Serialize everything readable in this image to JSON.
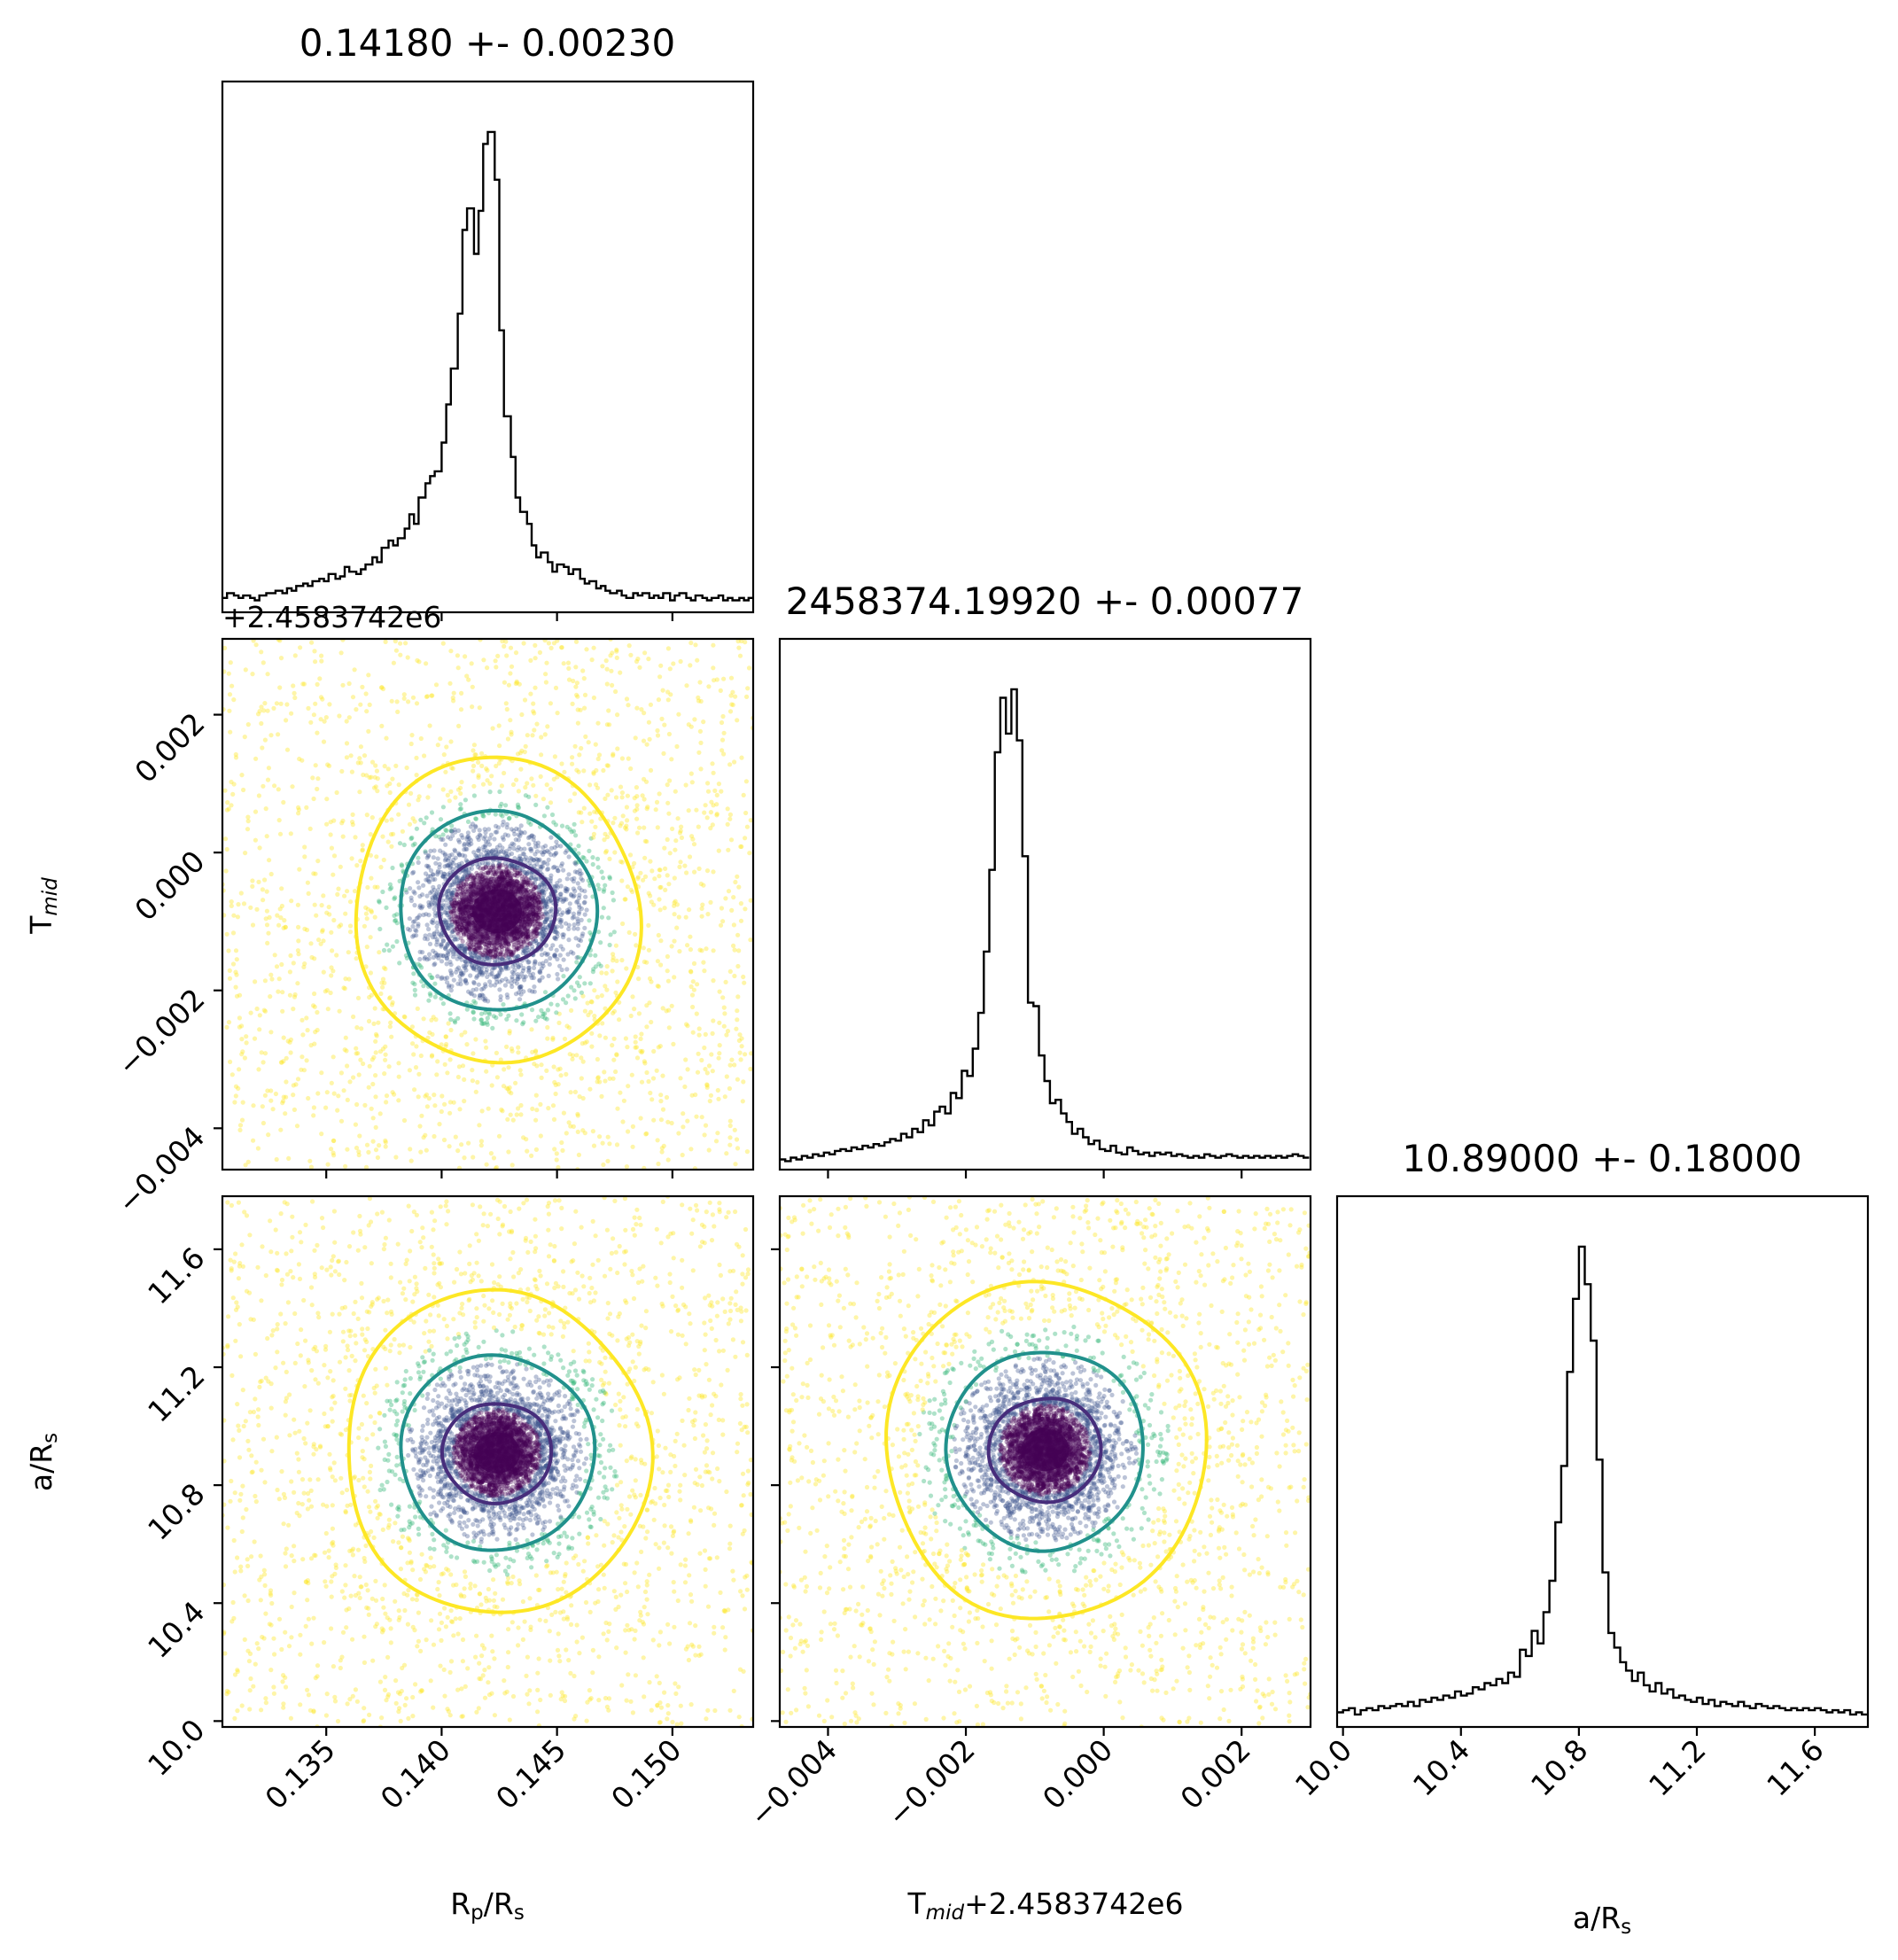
{
  "figure": {
    "type": "corner-plot",
    "colors": {
      "outer_contour": "#fde725",
      "middle_contour": "#21918c",
      "inner_contour": "#472d7b",
      "core": "#440154",
      "histogram": "#000000"
    }
  },
  "chart_data": [
    {
      "type": "histogram",
      "panel": "Rp/Rs marginal",
      "title": "0.14180 +- 0.00230",
      "xlim": [
        0.1305,
        0.1535
      ],
      "x_ticks": [
        "0.135",
        "0.140",
        "0.145",
        "0.150"
      ],
      "x_tick_values": [
        0.135,
        0.14,
        0.145,
        0.15
      ],
      "bins": [
        0.1305,
        0.1307,
        0.131,
        0.1312,
        0.1314,
        0.1317,
        0.1319,
        0.1321,
        0.1324,
        0.1326,
        0.1328,
        0.1331,
        0.1333,
        0.1335,
        0.1337,
        0.134,
        0.1342,
        0.1344,
        0.1347,
        0.1349,
        0.1351,
        0.1354,
        0.1356,
        0.1358,
        0.136,
        0.1363,
        0.1365,
        0.1367,
        0.137,
        0.1372,
        0.1374,
        0.1377,
        0.1379,
        0.1381,
        0.1384,
        0.1386,
        0.1388,
        0.139,
        0.1393,
        0.1395,
        0.1397,
        0.14,
        0.1402,
        0.1404,
        0.1407,
        0.1409,
        0.1411,
        0.1414,
        0.1416,
        0.1418,
        0.142,
        0.1423,
        0.1425,
        0.1427,
        0.143,
        0.1432,
        0.1434,
        0.1437,
        0.1439,
        0.1441,
        0.1443,
        0.1446,
        0.1448,
        0.145,
        0.1453,
        0.1455,
        0.1457,
        0.146,
        0.1462,
        0.1464,
        0.1467,
        0.1469,
        0.1471,
        0.1473,
        0.1476,
        0.1478,
        0.148,
        0.1483,
        0.1485,
        0.1487,
        0.149,
        0.1492,
        0.1494,
        0.1496,
        0.1499,
        0.1501,
        0.1503,
        0.1506,
        0.1508,
        0.151,
        0.1513,
        0.1515,
        0.1517,
        0.152,
        0.1522,
        0.1524,
        0.1526,
        0.1529,
        0.1531,
        0.1533,
        0.1535
      ],
      "counts": [
        6,
        8,
        7,
        6,
        7,
        6,
        5,
        7,
        8,
        8,
        9,
        8,
        10,
        9,
        11,
        12,
        11,
        13,
        14,
        13,
        16,
        14,
        15,
        19,
        17,
        16,
        18,
        20,
        23,
        21,
        27,
        30,
        28,
        31,
        35,
        41,
        37,
        48,
        54,
        57,
        59,
        71,
        87,
        102,
        125,
        160,
        169,
        150,
        168,
        196,
        201,
        181,
        118,
        82,
        65,
        48,
        42,
        37,
        28,
        23,
        25,
        21,
        17,
        20,
        19,
        16,
        18,
        14,
        12,
        13,
        10,
        11,
        9,
        8,
        9,
        7,
        6,
        8,
        7,
        8,
        6,
        7,
        6,
        8,
        5,
        7,
        8,
        6,
        5,
        7,
        6,
        5,
        6,
        7,
        5,
        6,
        5,
        6,
        5,
        6
      ]
    },
    {
      "type": "histogram",
      "panel": "Tmid marginal",
      "title": "2458374.19920 +- 0.00077",
      "xlim": [
        -0.0047,
        0.003
      ],
      "x_ticks": [
        "-0.004",
        "-0.002",
        "0.000",
        "0.002"
      ],
      "x_tick_values": [
        -0.004,
        -0.002,
        0.0,
        0.002
      ],
      "bins": [
        -0.0047,
        -0.00462,
        -0.00454,
        -0.00446,
        -0.00438,
        -0.0043,
        -0.00422,
        -0.00414,
        -0.00406,
        -0.00398,
        -0.0039,
        -0.00382,
        -0.00374,
        -0.00366,
        -0.00358,
        -0.0035,
        -0.00342,
        -0.00334,
        -0.00326,
        -0.00318,
        -0.0031,
        -0.00302,
        -0.00294,
        -0.00286,
        -0.00278,
        -0.0027,
        -0.00262,
        -0.00254,
        -0.00246,
        -0.00238,
        -0.0023,
        -0.00222,
        -0.00214,
        -0.00206,
        -0.00198,
        -0.0019,
        -0.00182,
        -0.00174,
        -0.00166,
        -0.00158,
        -0.0015,
        -0.00142,
        -0.00134,
        -0.00126,
        -0.00118,
        -0.0011,
        -0.00102,
        -0.00094,
        -0.00086,
        -0.00078,
        -0.0007,
        -0.00062,
        -0.00054,
        -0.00046,
        -0.00038,
        -0.0003,
        -0.00022,
        -0.00014,
        -6e-05,
        2e-05,
        0.0001,
        0.00018,
        0.00026,
        0.00034,
        0.00042,
        0.0005,
        0.00058,
        0.00066,
        0.00074,
        0.00082,
        0.0009,
        0.00098,
        0.00106,
        0.00114,
        0.00122,
        0.0013,
        0.00138,
        0.00146,
        0.00154,
        0.00162,
        0.0017,
        0.00178,
        0.00186,
        0.00194,
        0.00202,
        0.0021,
        0.00218,
        0.00226,
        0.00234,
        0.00242,
        0.0025,
        0.00258,
        0.00266,
        0.00274,
        0.00282,
        0.0029,
        0.00298
      ],
      "counts": [
        6,
        5,
        7,
        6,
        8,
        7,
        9,
        8,
        10,
        9,
        11,
        12,
        11,
        13,
        12,
        14,
        13,
        15,
        14,
        16,
        18,
        17,
        21,
        19,
        24,
        22,
        29,
        26,
        34,
        37,
        33,
        45,
        42,
        58,
        55,
        71,
        92,
        128,
        176,
        245,
        277,
        256,
        282,
        252,
        184,
        98,
        96,
        67,
        52,
        39,
        41,
        33,
        28,
        21,
        24,
        19,
        15,
        17,
        12,
        11,
        14,
        10,
        9,
        13,
        11,
        9,
        10,
        8,
        10,
        9,
        10,
        8,
        9,
        8,
        7,
        8,
        7,
        9,
        8,
        7,
        8,
        9,
        8,
        7,
        8,
        7,
        8,
        7,
        8,
        7,
        8,
        7,
        8,
        9,
        8,
        7
      ]
    },
    {
      "type": "histogram",
      "panel": "a/Rs marginal",
      "title": "10.89000 +- 0.18000",
      "xlim": [
        9.98,
        11.78
      ],
      "x_ticks": [
        "10.0",
        "10.4",
        "10.8",
        "11.2",
        "11.6"
      ],
      "x_tick_values": [
        10.0,
        10.4,
        10.8,
        11.2,
        11.6
      ],
      "bins": [
        9.98,
        10.0,
        10.02,
        10.04,
        10.06,
        10.08,
        10.1,
        10.12,
        10.14,
        10.16,
        10.18,
        10.2,
        10.22,
        10.24,
        10.26,
        10.28,
        10.3,
        10.32,
        10.34,
        10.36,
        10.38,
        10.4,
        10.42,
        10.44,
        10.46,
        10.48,
        10.5,
        10.52,
        10.54,
        10.56,
        10.58,
        10.6,
        10.62,
        10.64,
        10.66,
        10.68,
        10.7,
        10.72,
        10.74,
        10.76,
        10.78,
        10.8,
        10.82,
        10.84,
        10.86,
        10.88,
        10.9,
        10.92,
        10.94,
        10.96,
        10.98,
        11.0,
        11.02,
        11.04,
        11.06,
        11.08,
        11.1,
        11.12,
        11.14,
        11.16,
        11.18,
        11.2,
        11.22,
        11.24,
        11.26,
        11.28,
        11.3,
        11.32,
        11.34,
        11.36,
        11.38,
        11.4,
        11.42,
        11.44,
        11.46,
        11.48,
        11.5,
        11.52,
        11.54,
        11.56,
        11.58,
        11.6,
        11.62,
        11.64,
        11.66,
        11.68,
        11.7,
        11.72,
        11.74,
        11.76,
        11.78
      ],
      "counts": [
        7,
        8,
        9,
        6,
        8,
        9,
        8,
        10,
        9,
        10,
        11,
        10,
        12,
        10,
        13,
        12,
        14,
        13,
        15,
        14,
        17,
        15,
        16,
        19,
        18,
        21,
        20,
        23,
        21,
        26,
        24,
        37,
        34,
        46,
        40,
        55,
        70,
        98,
        125,
        170,
        205,
        230,
        212,
        185,
        128,
        74,
        45,
        38,
        31,
        27,
        22,
        26,
        20,
        17,
        21,
        16,
        18,
        14,
        15,
        13,
        12,
        14,
        11,
        13,
        10,
        12,
        11,
        10,
        12,
        10,
        9,
        11,
        10,
        9,
        10,
        9,
        8,
        9,
        8,
        9,
        8,
        9,
        8,
        7,
        8,
        7,
        8,
        6,
        7,
        6
      ]
    },
    {
      "type": "scatter-contour",
      "panel": "Tmid vs Rp/Rs",
      "center": [
        0.1424,
        -0.00085
      ],
      "contour_levels_sigma": [
        1,
        2,
        3
      ],
      "x_range": [
        0.1305,
        0.1535
      ],
      "y_range": [
        -0.0046,
        0.0031
      ],
      "y_ticks": [
        "0.002",
        "0.000",
        "-0.002",
        "-0.004"
      ],
      "y_tick_values": [
        0.002,
        0.0,
        -0.002,
        -0.004
      ]
    },
    {
      "type": "scatter-contour",
      "panel": "a/Rs vs Rp/Rs",
      "center": [
        0.1424,
        10.91
      ],
      "contour_levels_sigma": [
        1,
        2,
        3
      ],
      "x_range": [
        0.1305,
        0.1535
      ],
      "y_range": [
        9.98,
        11.78
      ],
      "y_ticks": [
        "11.6",
        "11.2",
        "10.8",
        "10.4",
        "10.0"
      ],
      "y_tick_values": [
        11.6,
        11.2,
        10.8,
        10.4,
        10.0
      ]
    },
    {
      "type": "scatter-contour",
      "panel": "a/Rs vs Tmid",
      "center": [
        -0.00085,
        10.92
      ],
      "contour_levels_sigma": [
        1,
        2,
        3
      ],
      "x_range": [
        -0.0047,
        0.003
      ],
      "y_range": [
        9.98,
        11.78
      ]
    }
  ],
  "labels": {
    "x_rp": "Rp/Rs",
    "x_tmid": "Tmid+2.4583742e6",
    "x_ars": "a/Rs",
    "y_tmid": "Tmid",
    "y_ars": "a/Rs",
    "offset_tmid": "+2.4583742e6"
  },
  "label_parts": {
    "R": "R",
    "p": "p",
    "slash": "/R",
    "s": "s",
    "T": "T",
    "mid": "mid",
    "offset": "+2.4583742e6",
    "a": "a"
  }
}
